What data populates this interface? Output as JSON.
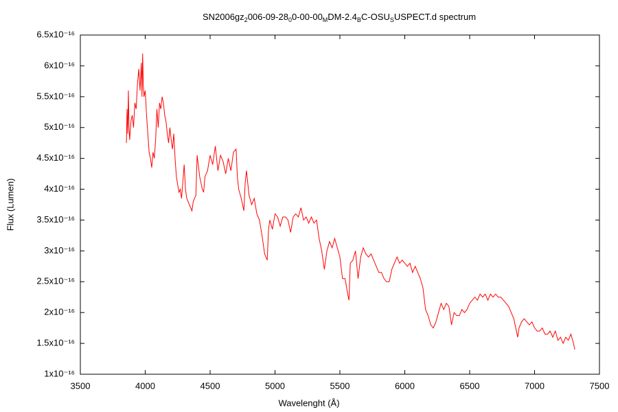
{
  "chart_data": {
    "type": "line",
    "title": [
      "SN2006gz",
      "2",
      "006-09-28",
      "0",
      "0-00-00",
      "M",
      "DM-2.4",
      "B",
      "C-OSU",
      "S",
      "USPECT.d spectrum"
    ],
    "x_label": "Wavelenght (Å)",
    "y_label": "Flux (Lumen)",
    "color": "#ff0000",
    "grid": false,
    "xlim": [
      3500,
      7500
    ],
    "xticks": [
      3500,
      4000,
      4500,
      5000,
      5500,
      6000,
      6500,
      7000,
      7500
    ],
    "ylim": [
      1e-16,
      6.5e-16
    ],
    "yticks": [
      {
        "value": 1e-16,
        "label": "1x10⁻¹⁶"
      },
      {
        "value": 1.5e-16,
        "label": "1.5x10⁻¹⁶"
      },
      {
        "value": 2e-16,
        "label": "2x10⁻¹⁶"
      },
      {
        "value": 2.5e-16,
        "label": "2.5x10⁻¹⁶"
      },
      {
        "value": 3e-16,
        "label": "3x10⁻¹⁶"
      },
      {
        "value": 3.5e-16,
        "label": "3.5x10⁻¹⁶"
      },
      {
        "value": 4e-16,
        "label": "4x10⁻¹⁶"
      },
      {
        "value": 4.5e-16,
        "label": "4.5x10⁻¹⁶"
      },
      {
        "value": 5e-16,
        "label": "5x10⁻¹⁶"
      },
      {
        "value": 5.5e-16,
        "label": "5.5x10⁻¹⁶"
      },
      {
        "value": 6e-16,
        "label": "6x10⁻¹⁶"
      },
      {
        "value": 6.5e-16,
        "label": "6.5x10⁻¹⁶"
      }
    ],
    "x": [
      3855,
      3860,
      3865,
      3870,
      3875,
      3880,
      3890,
      3900,
      3910,
      3920,
      3930,
      3940,
      3950,
      3960,
      3970,
      3975,
      3980,
      3985,
      3990,
      4000,
      4010,
      4020,
      4030,
      4040,
      4050,
      4060,
      4070,
      4080,
      4090,
      4100,
      4110,
      4120,
      4130,
      4140,
      4150,
      4160,
      4170,
      4180,
      4190,
      4200,
      4210,
      4220,
      4230,
      4240,
      4260,
      4270,
      4280,
      4300,
      4310,
      4320,
      4340,
      4360,
      4370,
      4390,
      4400,
      4420,
      4440,
      4450,
      4460,
      4480,
      4500,
      4520,
      4540,
      4560,
      4580,
      4600,
      4620,
      4640,
      4660,
      4680,
      4700,
      4710,
      4720,
      4740,
      4760,
      4770,
      4780,
      4800,
      4820,
      4840,
      4860,
      4880,
      4900,
      4920,
      4940,
      4950,
      4960,
      4980,
      5000,
      5020,
      5040,
      5060,
      5080,
      5100,
      5120,
      5140,
      5160,
      5180,
      5200,
      5220,
      5240,
      5260,
      5280,
      5300,
      5320,
      5340,
      5360,
      5380,
      5400,
      5420,
      5440,
      5460,
      5480,
      5500,
      5520,
      5540,
      5560,
      5570,
      5580,
      5600,
      5620,
      5640,
      5660,
      5680,
      5700,
      5720,
      5740,
      5760,
      5780,
      5800,
      5820,
      5840,
      5860,
      5880,
      5900,
      5920,
      5940,
      5960,
      5980,
      6000,
      6020,
      6040,
      6060,
      6080,
      6100,
      6120,
      6140,
      6160,
      6180,
      6200,
      6220,
      6240,
      6260,
      6280,
      6300,
      6320,
      6340,
      6360,
      6380,
      6400,
      6420,
      6440,
      6460,
      6480,
      6500,
      6520,
      6540,
      6560,
      6580,
      6600,
      6620,
      6640,
      6660,
      6680,
      6700,
      6720,
      6740,
      6760,
      6780,
      6800,
      6820,
      6840,
      6860,
      6870,
      6880,
      6900,
      6920,
      6940,
      6960,
      6980,
      7000,
      7020,
      7040,
      7060,
      7080,
      7100,
      7120,
      7140,
      7160,
      7180,
      7200,
      7220,
      7240,
      7260,
      7280,
      7300,
      7310
    ],
    "values": [
      4.75e-16,
      5.3e-16,
      4.9e-16,
      5.6e-16,
      5e-16,
      4.8e-16,
      5.1e-16,
      5.2e-16,
      5e-16,
      5.4e-16,
      5.3e-16,
      5.7e-16,
      5.95e-16,
      5.6e-16,
      6.05e-16,
      5.5e-16,
      6.2e-16,
      5.7e-16,
      5.5e-16,
      5.6e-16,
      5.2e-16,
      4.9e-16,
      4.6e-16,
      4.5e-16,
      4.35e-16,
      4.6e-16,
      4.5e-16,
      4.8e-16,
      5.3e-16,
      5e-16,
      5.4e-16,
      5.3e-16,
      5.5e-16,
      5.4e-16,
      5.2e-16,
      5.1e-16,
      4.9e-16,
      4.75e-16,
      5e-16,
      4.8e-16,
      4.65e-16,
      4.9e-16,
      4.5e-16,
      4.2e-16,
      3.95e-16,
      4e-16,
      3.85e-16,
      4.4e-16,
      4e-16,
      3.85e-16,
      3.75e-16,
      3.65e-16,
      3.8e-16,
      3.9e-16,
      4.55e-16,
      4.2e-16,
      4e-16,
      3.95e-16,
      4.2e-16,
      4.3e-16,
      4.55e-16,
      4.4e-16,
      4.7e-16,
      4.3e-16,
      4.55e-16,
      4.45e-16,
      4.25e-16,
      4.5e-16,
      4.3e-16,
      4.6e-16,
      4.65e-16,
      4.2e-16,
      4e-16,
      3.85e-16,
      3.65e-16,
      4.1e-16,
      4.3e-16,
      3.9e-16,
      3.75e-16,
      3.85e-16,
      3.6e-16,
      3.5e-16,
      3.25e-16,
      2.95e-16,
      2.85e-16,
      3.35e-16,
      3.5e-16,
      3.35e-16,
      3.6e-16,
      3.55e-16,
      3.4e-16,
      3.55e-16,
      3.55e-16,
      3.5e-16,
      3.3e-16,
      3.55e-16,
      3.6e-16,
      3.55e-16,
      3.7e-16,
      3.5e-16,
      3.55e-16,
      3.45e-16,
      3.55e-16,
      3.45e-16,
      3.5e-16,
      3.2e-16,
      3e-16,
      2.7e-16,
      3e-16,
      3.15e-16,
      3.05e-16,
      3.2e-16,
      3.05e-16,
      2.9e-16,
      2.55e-16,
      2.55e-16,
      2.3e-16,
      2.2e-16,
      2.8e-16,
      2.85e-16,
      3e-16,
      2.55e-16,
      2.9e-16,
      3.05e-16,
      2.95e-16,
      2.9e-16,
      2.95e-16,
      2.85e-16,
      2.75e-16,
      2.65e-16,
      2.65e-16,
      2.55e-16,
      2.5e-16,
      2.5e-16,
      2.7e-16,
      2.8e-16,
      2.9e-16,
      2.8e-16,
      2.85e-16,
      2.8e-16,
      2.75e-16,
      2.8e-16,
      2.65e-16,
      2.75e-16,
      2.65e-16,
      2.55e-16,
      2.4e-16,
      2.05e-16,
      1.95e-16,
      1.8e-16,
      1.75e-16,
      1.85e-16,
      2e-16,
      2.15e-16,
      2.05e-16,
      2.15e-16,
      2.1e-16,
      1.8e-16,
      2e-16,
      1.95e-16,
      1.95e-16,
      2.05e-16,
      2e-16,
      2.05e-16,
      2.15e-16,
      2.2e-16,
      2.25e-16,
      2.2e-16,
      2.3e-16,
      2.25e-16,
      2.3e-16,
      2.2e-16,
      2.3e-16,
      2.25e-16,
      2.3e-16,
      2.25e-16,
      2.25e-16,
      2.2e-16,
      2.15e-16,
      2.1e-16,
      2e-16,
      1.9e-16,
      1.7e-16,
      1.6e-16,
      1.75e-16,
      1.85e-16,
      1.9e-16,
      1.85e-16,
      1.8e-16,
      1.85e-16,
      1.75e-16,
      1.7e-16,
      1.7e-16,
      1.75e-16,
      1.65e-16,
      1.65e-16,
      1.7e-16,
      1.6e-16,
      1.7e-16,
      1.55e-16,
      1.6e-16,
      1.5e-16,
      1.6e-16,
      1.55e-16,
      1.65e-16,
      1.5e-16,
      1.4e-16
    ]
  }
}
